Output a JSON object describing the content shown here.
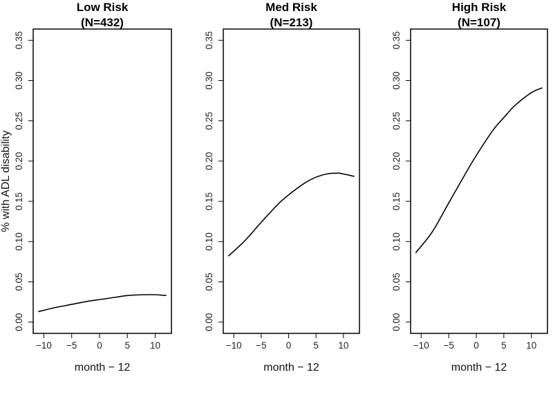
{
  "chart_data": [
    {
      "type": "line",
      "title": "Low Risk",
      "subtitle": "(N=432)",
      "xlabel": "month − 12",
      "ylabel": "% with ADL disability",
      "xlim": [
        -11,
        12
      ],
      "ylim": [
        0,
        0.35
      ],
      "xticks": [
        "−10",
        "−5",
        "0",
        "5",
        "10"
      ],
      "xtick_values": [
        -10,
        -5,
        0,
        5,
        10
      ],
      "yticks": [
        "0.00",
        "0.05",
        "0.10",
        "0.15",
        "0.20",
        "0.25",
        "0.30",
        "0.35"
      ],
      "ytick_values": [
        0,
        0.05,
        0.1,
        0.15,
        0.2,
        0.25,
        0.3,
        0.35
      ],
      "grid": false,
      "x": [
        -11,
        -8,
        -5,
        -2,
        0,
        3,
        5,
        8,
        10,
        12
      ],
      "y": [
        0.013,
        0.018,
        0.022,
        0.026,
        0.028,
        0.031,
        0.033,
        0.034,
        0.034,
        0.033
      ]
    },
    {
      "type": "line",
      "title": "Med Risk",
      "subtitle": "(N=213)",
      "xlabel": "month − 12",
      "xlim": [
        -11,
        12
      ],
      "ylim": [
        0,
        0.35
      ],
      "xticks": [
        "−10",
        "−5",
        "0",
        "5",
        "10"
      ],
      "xtick_values": [
        -10,
        -5,
        0,
        5,
        10
      ],
      "yticks": [
        "0.00",
        "0.05",
        "0.10",
        "0.15",
        "0.20",
        "0.25",
        "0.30",
        "0.35"
      ],
      "ytick_values": [
        0,
        0.05,
        0.1,
        0.15,
        0.2,
        0.25,
        0.3,
        0.35
      ],
      "grid": false,
      "x": [
        -11,
        -8,
        -5,
        -2,
        0,
        3,
        5,
        7,
        9,
        10,
        12
      ],
      "y": [
        0.082,
        0.101,
        0.124,
        0.146,
        0.158,
        0.173,
        0.18,
        0.184,
        0.185,
        0.184,
        0.181
      ]
    },
    {
      "type": "line",
      "title": "High Risk",
      "subtitle": "(N=107)",
      "xlabel": "month − 12",
      "xlim": [
        -11,
        12
      ],
      "ylim": [
        0,
        0.35
      ],
      "xticks": [
        "−10",
        "−5",
        "0",
        "5",
        "10"
      ],
      "xtick_values": [
        -10,
        -5,
        0,
        5,
        10
      ],
      "yticks": [
        "0.00",
        "0.05",
        "0.10",
        "0.15",
        "0.20",
        "0.25",
        "0.30",
        "0.35"
      ],
      "ytick_values": [
        0,
        0.05,
        0.1,
        0.15,
        0.2,
        0.25,
        0.3,
        0.35
      ],
      "grid": false,
      "x": [
        -11,
        -8,
        -5,
        -2,
        0,
        3,
        5,
        7,
        10,
        12
      ],
      "y": [
        0.086,
        0.112,
        0.148,
        0.184,
        0.207,
        0.238,
        0.254,
        0.269,
        0.285,
        0.291
      ]
    }
  ]
}
